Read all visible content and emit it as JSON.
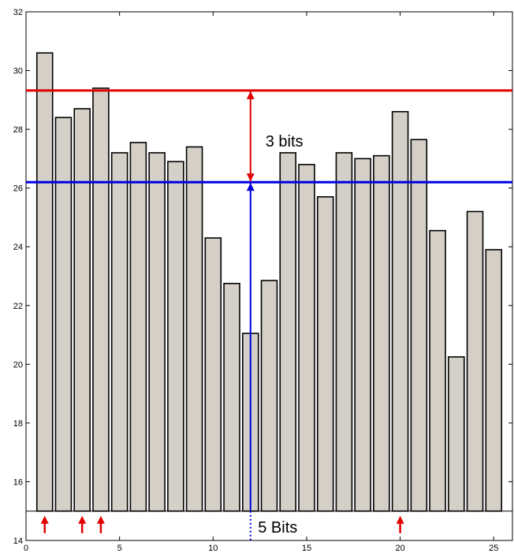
{
  "chart_data": {
    "type": "bar",
    "x": [
      1,
      2,
      3,
      4,
      5,
      6,
      7,
      8,
      9,
      10,
      11,
      12,
      13,
      14,
      15,
      16,
      17,
      18,
      19,
      20,
      21,
      22,
      23,
      24,
      25
    ],
    "values": [
      30.6,
      28.4,
      28.7,
      29.4,
      27.2,
      27.55,
      27.2,
      26.9,
      27.4,
      24.3,
      22.75,
      21.05,
      22.85,
      27.2,
      26.8,
      25.7,
      27.2,
      27.0,
      27.1,
      28.6,
      27.65,
      24.55,
      20.25,
      25.2,
      23.9
    ],
    "bar_base": 15,
    "xlim": [
      0,
      26
    ],
    "ylim": [
      14,
      32
    ],
    "xticks": [
      0,
      5,
      10,
      15,
      20,
      25
    ],
    "yticks": [
      14,
      16,
      18,
      20,
      22,
      24,
      26,
      28,
      30,
      32
    ],
    "bar_color": "#d4d0c8",
    "bar_edge_color": "#000000",
    "reference_lines": [
      {
        "y": 29.32,
        "color": "#e00000"
      },
      {
        "y": 26.2,
        "color": "#0000e0"
      }
    ],
    "annotations": [
      {
        "text": "3 bits",
        "x": 12.8,
        "y": 27.6
      },
      {
        "text": "5 Bits",
        "x": 12.4,
        "y": 14.45
      }
    ],
    "range_arrows": [
      {
        "x": 12,
        "from": 26.2,
        "to": 29.32,
        "color": "#e00000"
      },
      {
        "x": 12,
        "from": 15,
        "to": 26.2,
        "color": "#0000e0"
      }
    ],
    "marker_arrows": {
      "x": [
        1,
        3,
        4,
        20
      ],
      "color": "#e00000"
    },
    "title": "",
    "xlabel": "",
    "ylabel": ""
  }
}
